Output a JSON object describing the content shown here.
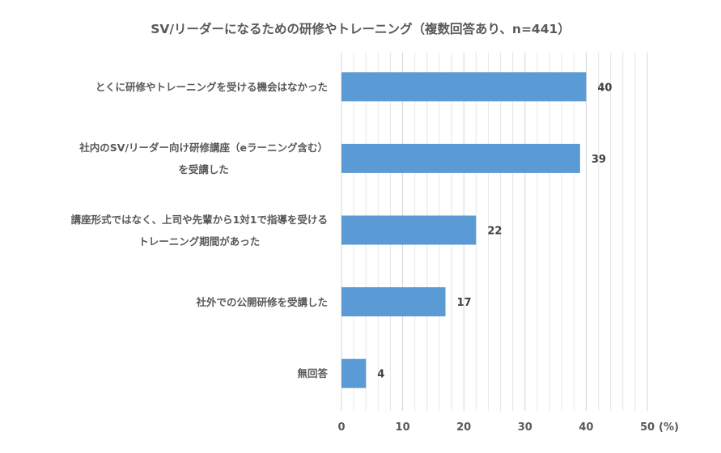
{
  "chart_data": {
    "type": "bar",
    "orientation": "horizontal",
    "title": "SV/リーダーになるための研修やトレーニング（複数回答あり、n=441）",
    "categories": [
      [
        "とくに研修やトレーニングを受ける機会はなかった"
      ],
      [
        "社内のSV/リーダー向け研修講座（eラーニング含む）",
        "を受講した"
      ],
      [
        "講座形式ではなく、上司や先輩から1対1で指導を受ける",
        "トレーニング期間があった"
      ],
      [
        "社外での公開研修を受講した"
      ],
      [
        "無回答"
      ]
    ],
    "values": [
      40,
      39,
      22,
      17,
      4
    ],
    "xlim": [
      0,
      50
    ],
    "xticks": [
      0,
      10,
      20,
      30,
      40,
      50
    ],
    "minor_grid_step": 2,
    "xunit": "(%)",
    "xlabel": "",
    "ylabel": "",
    "grid": true,
    "bar_color": "#5b9bd5"
  }
}
